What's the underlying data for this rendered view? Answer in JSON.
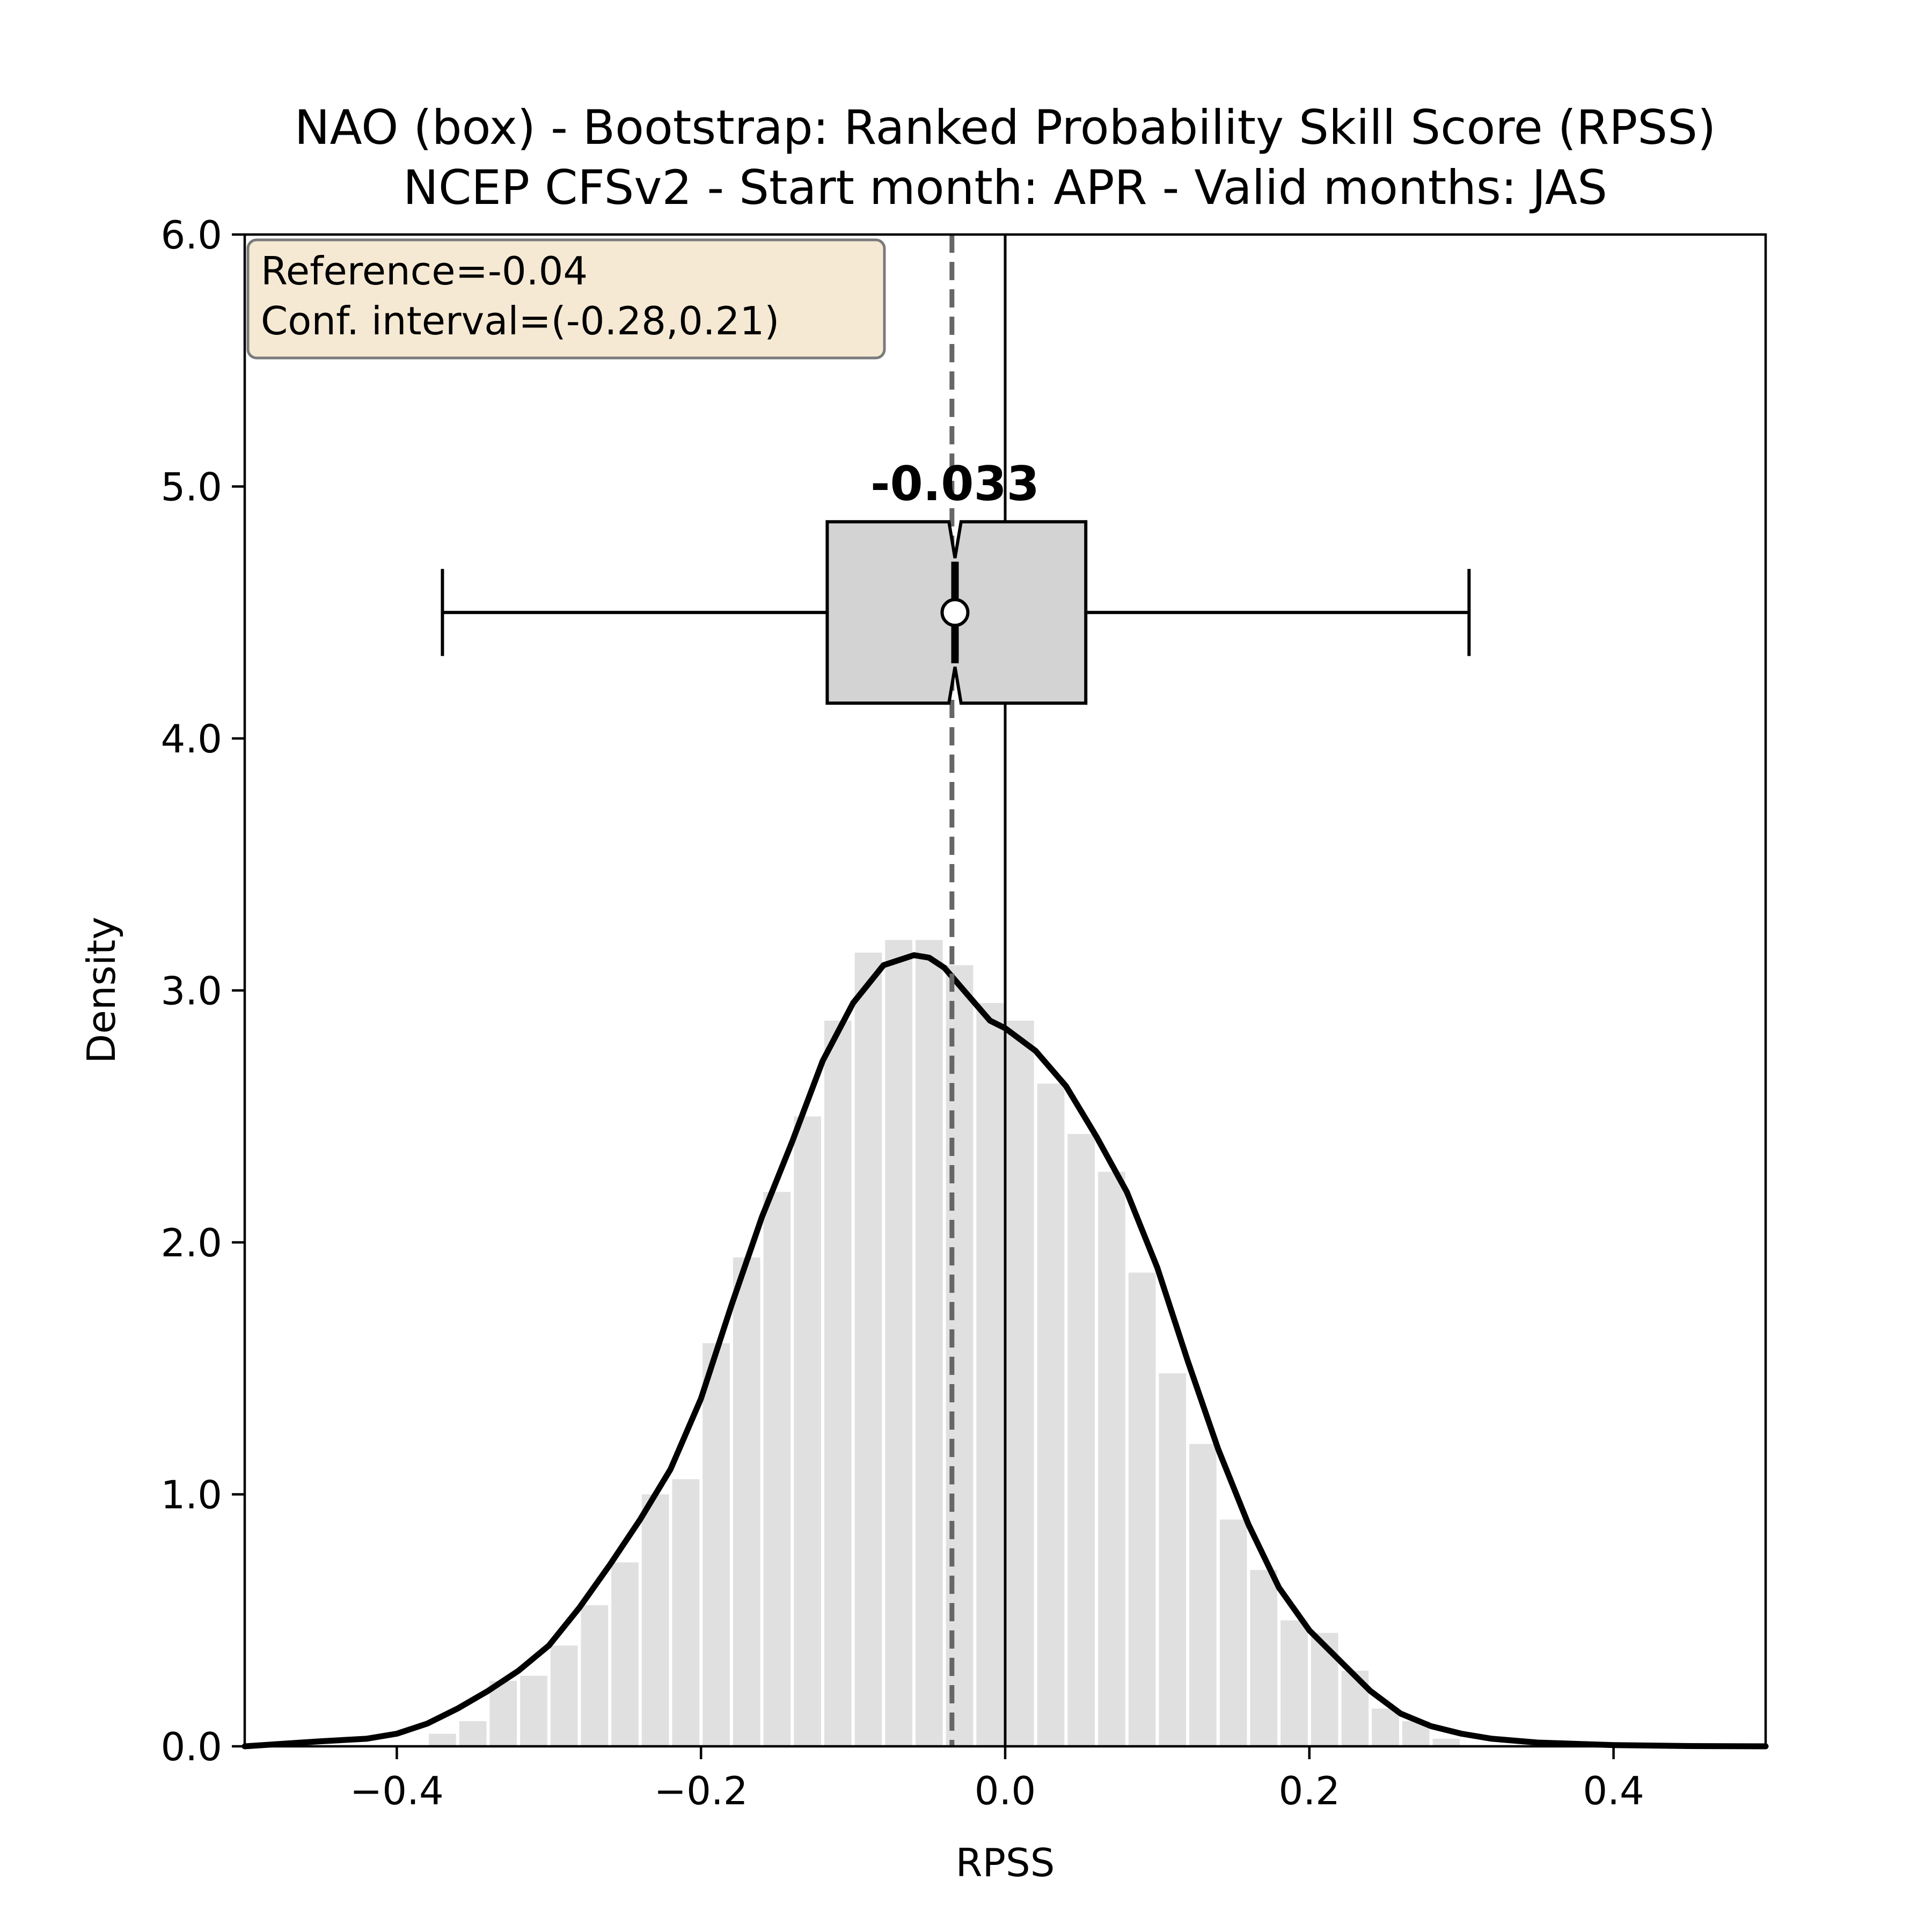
{
  "chart_data": {
    "type": "bar",
    "title": "NAO (box) - Bootstrap: Ranked Probability Skill Score (RPSS)",
    "subtitle": "NCEP CFSv2 - Start month: APR - Valid months: JAS",
    "xlabel": "RPSS",
    "ylabel": "Density",
    "xlim": [
      -0.5,
      0.5
    ],
    "ylim": [
      0.0,
      6.0
    ],
    "x_ticks": [
      -0.4,
      -0.2,
      0.0,
      0.2,
      0.4
    ],
    "x_tick_labels": [
      "−0.4",
      "−0.2",
      "0.0",
      "0.2",
      "0.4"
    ],
    "y_ticks": [
      0,
      1,
      2,
      3,
      4,
      5,
      6
    ],
    "y_tick_labels": [
      "0.0",
      "1.0",
      "2.0",
      "3.0",
      "4.0",
      "5.0",
      "6.0"
    ],
    "grid": false,
    "info_box": {
      "position": "top-left",
      "lines": [
        "Reference=-0.04",
        "Conf. interval=(-0.28,0.21)"
      ],
      "background_color": "#f5e9d3",
      "border_color": "#7a7a7a"
    },
    "histogram": {
      "bin_width": 0.02,
      "color": "#e0e0e0",
      "bins_start": [
        -0.38,
        -0.36,
        -0.34,
        -0.32,
        -0.3,
        -0.28,
        -0.26,
        -0.24,
        -0.22,
        -0.2,
        -0.18,
        -0.16,
        -0.14,
        -0.12,
        -0.1,
        -0.08,
        -0.06,
        -0.04,
        -0.02,
        0.0,
        0.02,
        0.04,
        0.06,
        0.08,
        0.1,
        0.12,
        0.14,
        0.16,
        0.18,
        0.2,
        0.22,
        0.24,
        0.26,
        0.28
      ],
      "density": [
        0.05,
        0.1,
        0.26,
        0.28,
        0.4,
        0.56,
        0.73,
        1.0,
        1.06,
        1.6,
        1.94,
        2.2,
        2.5,
        2.88,
        3.15,
        3.2,
        3.2,
        3.1,
        2.95,
        2.88,
        2.63,
        2.43,
        2.28,
        1.88,
        1.48,
        1.2,
        0.9,
        0.7,
        0.5,
        0.45,
        0.3,
        0.15,
        0.1,
        0.03
      ]
    },
    "kde_curve": {
      "color": "#000000",
      "x": [
        -0.5,
        -0.45,
        -0.42,
        -0.4,
        -0.38,
        -0.36,
        -0.34,
        -0.32,
        -0.3,
        -0.28,
        -0.26,
        -0.24,
        -0.22,
        -0.2,
        -0.18,
        -0.16,
        -0.14,
        -0.12,
        -0.1,
        -0.08,
        -0.06,
        -0.05,
        -0.04,
        -0.03,
        -0.02,
        -0.01,
        0.0,
        0.02,
        0.04,
        0.06,
        0.08,
        0.1,
        0.12,
        0.14,
        0.16,
        0.18,
        0.2,
        0.22,
        0.24,
        0.26,
        0.28,
        0.3,
        0.32,
        0.35,
        0.4,
        0.45,
        0.5
      ],
      "y": [
        0.0,
        0.02,
        0.03,
        0.05,
        0.09,
        0.15,
        0.22,
        0.3,
        0.4,
        0.55,
        0.72,
        0.9,
        1.1,
        1.38,
        1.75,
        2.1,
        2.4,
        2.72,
        2.95,
        3.1,
        3.14,
        3.13,
        3.09,
        3.02,
        2.95,
        2.88,
        2.85,
        2.76,
        2.62,
        2.42,
        2.2,
        1.9,
        1.53,
        1.18,
        0.88,
        0.63,
        0.46,
        0.34,
        0.22,
        0.13,
        0.08,
        0.05,
        0.03,
        0.015,
        0.005,
        0.001,
        0.0
      ]
    },
    "reference_line": {
      "x": -0.035,
      "style": "dashed",
      "color": "#666666"
    },
    "zero_line": {
      "x": 0.0,
      "color": "#000000"
    },
    "boxplot": {
      "orientation": "horizontal",
      "y_center": 4.5,
      "y_half_height": 0.36,
      "whisker_low": -0.37,
      "q1": -0.117,
      "median": -0.033,
      "q3": 0.053,
      "whisker_high": 0.305,
      "notch_low": -0.037,
      "notch_high": -0.029,
      "mean": -0.033,
      "fill_color": "#d3d3d3",
      "median_label": "-0.033"
    }
  }
}
